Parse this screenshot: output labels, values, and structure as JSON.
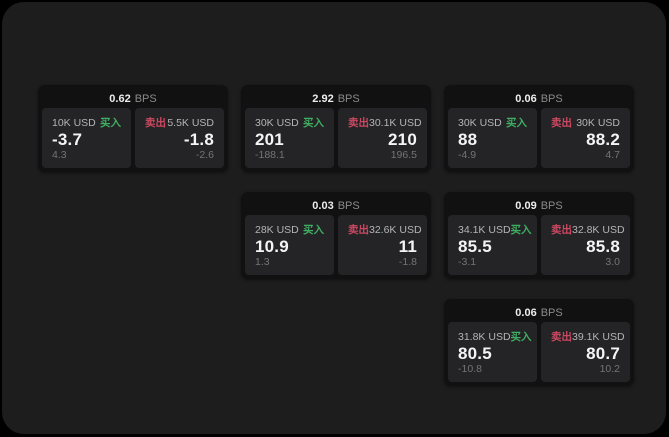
{
  "panel": {
    "page_bg": "#000000",
    "panel_bg": "#1d1d1e"
  },
  "colors": {
    "buy_green": "#3fae62",
    "sell_red": "#cb4860",
    "card_bg": "#111112",
    "tile_bg": "#242427"
  },
  "labels": {
    "bps_suffix": "BPS",
    "buy": "买入",
    "sell": "卖出"
  },
  "cards": [
    {
      "bps": "0.62",
      "buy": {
        "amount": "10K USD",
        "value": "-3.7",
        "delta": "4.3"
      },
      "sell": {
        "amount": "5.5K USD",
        "value": "-1.8",
        "delta": "-2.6"
      }
    },
    {
      "bps": "2.92",
      "buy": {
        "amount": "30K USD",
        "value": "201",
        "delta": "-188.1"
      },
      "sell": {
        "amount": "30.1K USD",
        "value": "210",
        "delta": "196.5"
      }
    },
    {
      "bps": "0.06",
      "buy": {
        "amount": "30K USD",
        "value": "88",
        "delta": "-4.9"
      },
      "sell": {
        "amount": "30K USD",
        "value": "88.2",
        "delta": "4.7"
      }
    },
    {
      "bps": "0.03",
      "buy": {
        "amount": "28K USD",
        "value": "10.9",
        "delta": "1.3"
      },
      "sell": {
        "amount": "32.6K USD",
        "value": "11",
        "delta": "-1.8"
      }
    },
    {
      "bps": "0.09",
      "buy": {
        "amount": "34.1K USD",
        "value": "85.5",
        "delta": "-3.1"
      },
      "sell": {
        "amount": "32.8K USD",
        "value": "85.8",
        "delta": "3.0"
      }
    },
    {
      "bps": "0.06",
      "buy": {
        "amount": "31.8K USD",
        "value": "80.5",
        "delta": "-10.8"
      },
      "sell": {
        "amount": "39.1K USD",
        "value": "80.7",
        "delta": "10.2"
      }
    }
  ]
}
